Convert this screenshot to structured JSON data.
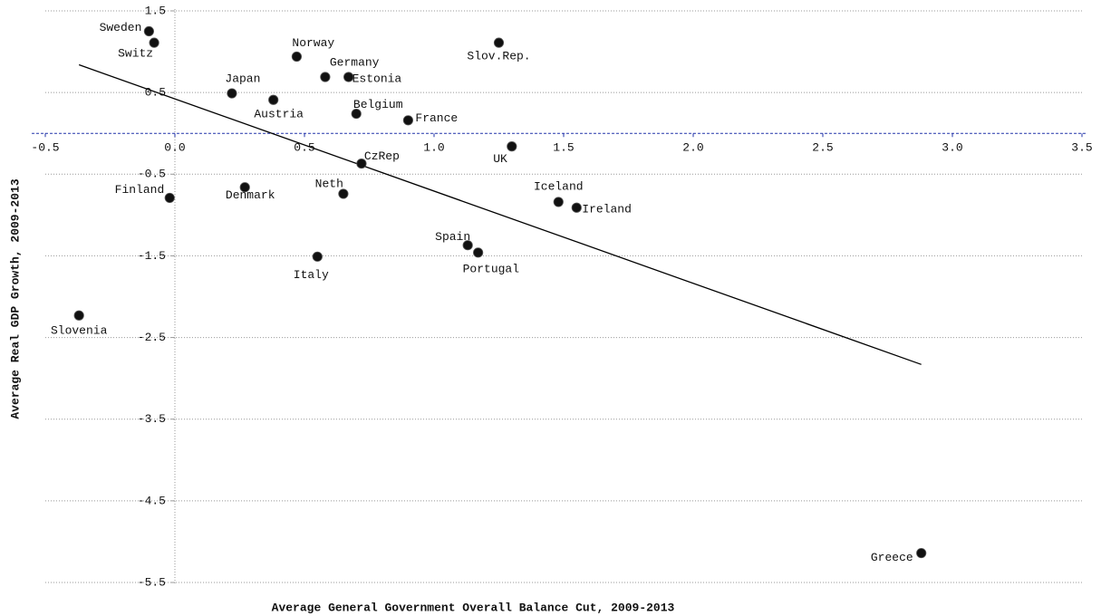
{
  "chart_data": {
    "type": "scatter",
    "x_label": "Average General Government Overall Balance Cut, 2009-2013",
    "y_label": "Average Real GDP Growth, 2009-2013",
    "labels": [
      "Sweden",
      "Switz",
      "Norway",
      "Slov.Rep.",
      "Germany",
      "Estonia",
      "Japan",
      "Austria",
      "Belgium",
      "France",
      "UK",
      "CzRep",
      "Finland",
      "Denmark",
      "Neth",
      "Iceland",
      "Ireland",
      "Spain",
      "Portugal",
      "Italy",
      "Slovenia",
      "Greece"
    ],
    "x": [
      -0.1,
      -0.08,
      0.47,
      1.25,
      0.58,
      0.67,
      0.22,
      0.38,
      0.7,
      0.9,
      1.3,
      0.72,
      -0.02,
      0.27,
      0.65,
      1.48,
      1.55,
      1.13,
      1.17,
      0.55,
      -0.37,
      2.88
    ],
    "y": [
      1.25,
      1.11,
      0.94,
      1.11,
      0.69,
      0.69,
      0.49,
      0.41,
      0.24,
      0.16,
      -0.16,
      -0.37,
      -0.79,
      -0.66,
      -0.74,
      -0.84,
      -0.91,
      -1.37,
      -1.46,
      -1.51,
      -2.23,
      -5.14
    ],
    "color": "#111111",
    "trendline": {
      "x": [
        -0.37,
        2.88
      ],
      "y": [
        0.84,
        -2.83
      ],
      "color": "#000000"
    },
    "xlim": [
      -0.5,
      3.5
    ],
    "ylim": [
      -5.5,
      1.5
    ],
    "xticks": [
      -0.5,
      {
        "value": 0,
        "label": "0.0"
      },
      0.5,
      {
        "value": 1,
        "label": "1.0"
      },
      1.5,
      {
        "value": 2,
        "label": "2.0"
      },
      2.5,
      {
        "value": 3,
        "label": "3.0"
      },
      3.5
    ],
    "yticks": [
      1.5,
      0.5,
      -0.5,
      -1.5,
      -2.5,
      -3.5,
      -4.5,
      -5.5
    ],
    "grid": true
  }
}
